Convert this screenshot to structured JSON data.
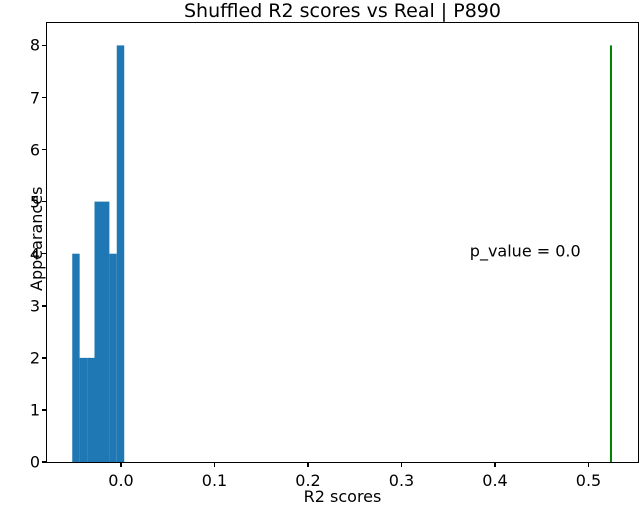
{
  "chart_data": {
    "type": "bar",
    "subtype": "histogram",
    "title": "Shuffled R2 scores vs Real | P890",
    "xlabel": "R2 scores",
    "ylabel": "Appearances",
    "grid": false,
    "xlim": [
      -0.0791,
      0.5529
    ],
    "ylim": [
      0,
      8.43
    ],
    "xticks": {
      "values": [
        0.0,
        0.1,
        0.2,
        0.3,
        0.4,
        0.5
      ],
      "labels": [
        "0.0",
        "0.1",
        "0.2",
        "0.3",
        "0.4",
        "0.5"
      ]
    },
    "yticks": {
      "values": [
        0,
        1,
        2,
        3,
        4,
        5,
        6,
        7,
        8
      ],
      "labels": [
        "0",
        "1",
        "2",
        "3",
        "4",
        "5",
        "6",
        "7",
        "8"
      ]
    },
    "bins": {
      "edges": [
        -0.0521,
        -0.0442,
        -0.0362,
        -0.0283,
        -0.0203,
        -0.0124,
        -0.0045,
        0.0035
      ],
      "counts": [
        4,
        2,
        2,
        5,
        5,
        4,
        8
      ]
    },
    "real_line": {
      "x": 0.524,
      "y_from": 0,
      "y_to": 8
    },
    "annotation": {
      "text": "p_value = 0.0",
      "x": 0.373,
      "y": 4.05
    },
    "colors": {
      "bar": "#1f77b4",
      "vline": "#008000",
      "text": "#000000",
      "background": "#ffffff"
    }
  }
}
